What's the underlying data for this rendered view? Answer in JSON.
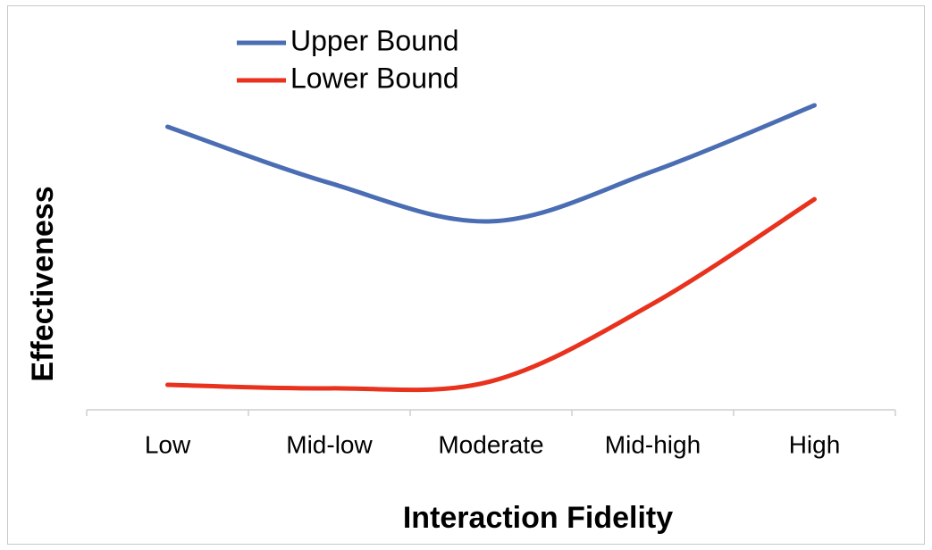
{
  "chart_data": {
    "type": "line",
    "smooth": true,
    "x_label": "Interaction Fidelity",
    "y_label": "Effectiveness",
    "categories": [
      "Low",
      "Mid-low",
      "Moderate",
      "Mid-high",
      "High"
    ],
    "series": [
      {
        "name": "Upper Bound",
        "color": "#4a6db3",
        "values": [
          88.3,
          70.8,
          58.8,
          74.4,
          95
        ]
      },
      {
        "name": "Lower Bound",
        "color": "#e8321e",
        "values": [
          7.8,
          6.7,
          8.9,
          33.1,
          65.7
        ]
      }
    ],
    "ylim": [
      0,
      100
    ]
  }
}
